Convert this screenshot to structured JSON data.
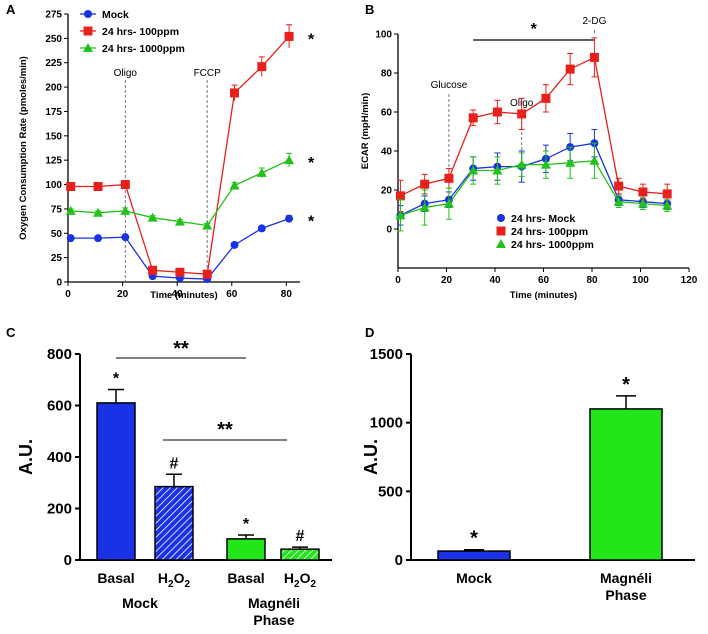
{
  "panels": {
    "A": {
      "letter": "A",
      "type": "line",
      "xlabel": "Time (minutes)",
      "ylabel": "Oxygen Consumption Rate (pmoles/min)",
      "xlim": [
        0,
        85
      ],
      "ylim": [
        0,
        275
      ],
      "xticks": [
        0,
        20,
        40,
        60,
        80
      ],
      "yticks": [
        0,
        25,
        50,
        75,
        100,
        125,
        150,
        175,
        200,
        225,
        250,
        275
      ],
      "series": [
        {
          "name": "Mock",
          "color": "#1a32e6",
          "marker": "circle",
          "x": [
            1,
            11,
            21,
            31,
            41,
            51,
            61,
            71,
            81
          ],
          "y": [
            45,
            45,
            46,
            6,
            4,
            3,
            38,
            55,
            65
          ],
          "err": [
            1.5,
            1.5,
            1.5,
            1,
            1,
            1,
            2,
            2,
            3
          ]
        },
        {
          "name": "24 hrs- 100ppm",
          "color": "#e8201c",
          "marker": "square",
          "x": [
            1,
            11,
            21,
            31,
            41,
            51,
            61,
            71,
            81
          ],
          "y": [
            98,
            98,
            100,
            12,
            10,
            8,
            194,
            221,
            252
          ],
          "err": [
            3,
            3,
            4,
            2,
            2,
            2,
            8,
            10,
            12
          ]
        },
        {
          "name": "24 hrs- 1000ppm",
          "color": "#22c21a",
          "marker": "triangle",
          "x": [
            1,
            11,
            21,
            31,
            41,
            51,
            61,
            71,
            81
          ],
          "y": [
            73,
            71,
            73,
            66,
            62,
            58,
            99,
            112,
            125
          ],
          "err": [
            2,
            2,
            3,
            2,
            2,
            2,
            3,
            5,
            7
          ]
        }
      ],
      "annotations": [
        {
          "text": "Oligo",
          "x": 21
        },
        {
          "text": "FCCP",
          "x": 51
        }
      ],
      "stars": [
        "*",
        "*",
        "*"
      ]
    },
    "B": {
      "letter": "B",
      "type": "line",
      "xlabel": "Time (minutes)",
      "ylabel": "ECAR (mpH/min)",
      "xlim": [
        0,
        120
      ],
      "ylim": [
        -20,
        100
      ],
      "xticks": [
        0,
        20,
        40,
        60,
        80,
        100,
        120
      ],
      "yticks": [
        0,
        20,
        40,
        60,
        80,
        100
      ],
      "series": [
        {
          "name": "24 hrs- Mock",
          "color": "#1a32e6",
          "marker": "circle",
          "x": [
            1,
            11,
            21,
            31,
            41,
            51,
            61,
            71,
            81,
            91,
            101,
            111
          ],
          "y": [
            7,
            13,
            15,
            31,
            32,
            32,
            36,
            42,
            44,
            15,
            14,
            13
          ],
          "err": [
            5,
            4,
            4,
            6,
            7,
            8,
            7,
            7,
            7,
            3,
            3,
            3
          ]
        },
        {
          "name": "24 hrs- 100ppm",
          "color": "#e8201c",
          "marker": "square",
          "x": [
            1,
            11,
            21,
            31,
            41,
            51,
            61,
            71,
            81,
            91,
            101,
            111
          ],
          "y": [
            17,
            23,
            26,
            57,
            60,
            59,
            67,
            82,
            88,
            22,
            19,
            18
          ],
          "err": [
            8,
            5,
            5,
            4,
            6,
            8,
            7,
            8,
            10,
            4,
            4,
            5
          ]
        },
        {
          "name": "24 hrs- 1000ppm",
          "color": "#22c21a",
          "marker": "triangle",
          "x": [
            1,
            11,
            21,
            31,
            41,
            51,
            61,
            71,
            81,
            91,
            101,
            111
          ],
          "y": [
            7,
            11,
            13,
            30,
            30,
            33,
            33,
            34,
            35,
            14,
            13,
            12
          ],
          "err": [
            8,
            9,
            8,
            7,
            7,
            6,
            7,
            8,
            9,
            3,
            3,
            3
          ]
        }
      ],
      "annotations": [
        {
          "text": "Glucose",
          "x": 21
        },
        {
          "text": "Oligo",
          "x": 51
        },
        {
          "text": "2-DG",
          "x": 81
        }
      ],
      "star": "*"
    },
    "C": {
      "letter": "C",
      "type": "bar",
      "ylabel": "A.U.",
      "ylim": [
        0,
        800
      ],
      "yticks": [
        0,
        200,
        400,
        600,
        800
      ],
      "bars": [
        {
          "label": "Basal",
          "value": 610,
          "err": 52,
          "color": "#1a32e6",
          "hatched": false,
          "mark": "*"
        },
        {
          "label": "H2O2",
          "value": 285,
          "err": 48,
          "color": "#1a32e6",
          "hatched": true,
          "mark": "#"
        },
        {
          "label": "Basal",
          "value": 82,
          "err": 15,
          "color": "#22e61a",
          "hatched": false,
          "mark": "*"
        },
        {
          "label": "H2O2",
          "value": 42,
          "err": 8,
          "color": "#22e61a",
          "hatched": true,
          "mark": "#"
        }
      ],
      "groups": [
        {
          "label": "Mock"
        },
        {
          "line1": "Magnéli",
          "line2": "Phase"
        }
      ],
      "brackets": [
        "**",
        "**"
      ]
    },
    "D": {
      "letter": "D",
      "type": "bar",
      "ylabel": "A.U.",
      "ylim": [
        0,
        1500
      ],
      "yticks": [
        0,
        500,
        1000,
        1500
      ],
      "bars": [
        {
          "label": "Mock",
          "value": 65,
          "err": 10,
          "color": "#1a32e6",
          "mark": "*"
        },
        {
          "label1": "Magnéli",
          "label2": "Phase",
          "value": 1100,
          "err": 95,
          "color": "#22e61a",
          "mark": "*"
        }
      ]
    }
  }
}
